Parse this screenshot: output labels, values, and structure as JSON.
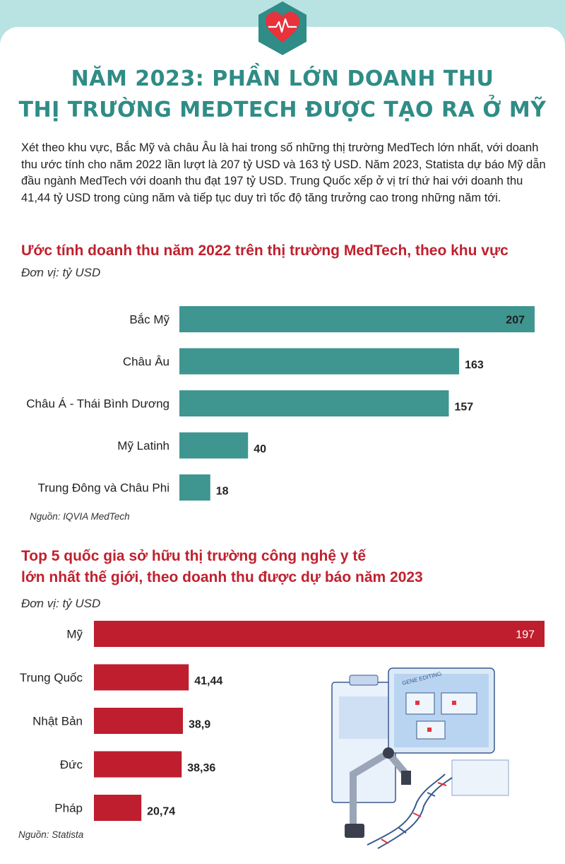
{
  "header": {
    "title_line1": "NĂM 2023: PHẦN LỚN DOANH THU",
    "title_line2": "THỊ TRƯỜNG MEDTECH ĐƯỢC TẠO RA Ở MỸ",
    "badge_icon": "heart-pulse-icon"
  },
  "intro": "Xét theo khu vực, Bắc Mỹ và châu Âu là hai trong số những thị trường MedTech lớn nhất, với doanh thu ước tính cho năm 2022 lần lượt là 207 tỷ USD và 163 tỷ USD. Năm 2023, Statista dự báo Mỹ dẫn đầu ngành MedTech với doanh thu đạt 197 tỷ USD. Trung Quốc xếp ở vị trí thứ hai với doanh thu 41,44 tỷ USD trong cùng năm và tiếp tục duy trì tốc độ tăng trưởng cao trong những năm tới.",
  "colors": {
    "teal": "#3f9590",
    "red": "#be1e2d",
    "title": "#2f8c86",
    "heading": "#c0202e",
    "background": "#b9e2e3"
  },
  "illustration": {
    "icon": "gene-editing-robot-icon",
    "screen_label": "GENE EDITING"
  },
  "chart_data": [
    {
      "type": "bar",
      "orientation": "horizontal",
      "title": "Ước tính doanh thu năm 2022 trên thị trường MedTech, theo khu vực",
      "unit": "Đơn vị: tỷ USD",
      "source": "Nguồn: IQVIA MedTech",
      "categories": [
        "Bắc Mỹ",
        "Châu Âu",
        "Châu Á - Thái Bình Dương",
        "Mỹ Latinh",
        "Trung Đông và Châu Phi"
      ],
      "values": [
        207,
        163,
        157,
        40,
        18
      ],
      "value_labels": [
        "207",
        "163",
        "157",
        "40",
        "18"
      ],
      "xlim": [
        0,
        207
      ],
      "color": "#3f9590",
      "grid": false
    },
    {
      "type": "bar",
      "orientation": "horizontal",
      "title_line1": "Top 5 quốc gia sở hữu thị trường công nghệ y tế",
      "title_line2": "lớn nhất thế giới, theo doanh thu được dự báo năm 2023",
      "unit": "Đơn vị: tỷ USD",
      "source": "Nguồn: Statista",
      "categories": [
        "Mỹ",
        "Trung Quốc",
        "Nhật Bản",
        "Đức",
        "Pháp"
      ],
      "values": [
        197,
        41.44,
        38.9,
        38.36,
        20.74
      ],
      "value_labels": [
        "197",
        "41,44",
        "38,9",
        "38,36",
        "20,74"
      ],
      "xlim": [
        0,
        197
      ],
      "color": "#be1e2d",
      "grid": false
    }
  ]
}
